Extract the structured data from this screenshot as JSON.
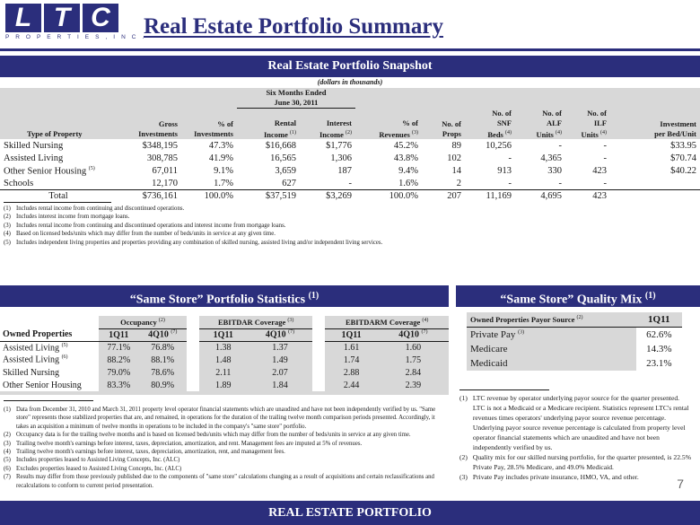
{
  "logo": {
    "letters": [
      "L",
      "T",
      "C"
    ],
    "subtitle": "P R O P E R T I E S ,   I N C ."
  },
  "page_title": "Real Estate Portfolio Summary",
  "snapshot": {
    "heading": "Real Estate Portfolio Snapshot",
    "units_note": "(dollars in thousands)",
    "period_header": [
      "Six Months Ended",
      "June 30, 2011"
    ],
    "columns": {
      "type": "Type of Property",
      "gross": [
        "Gross",
        "Investments"
      ],
      "pct_inv": [
        "% of",
        "Investments"
      ],
      "rental": [
        "Rental",
        "Income"
      ],
      "rental_sup": "(1)",
      "interest": [
        "Interest",
        "Income"
      ],
      "interest_sup": "(2)",
      "pct_rev": [
        "% of",
        "Revenues"
      ],
      "pct_rev_sup": "(3)",
      "props": [
        "No. of",
        "Props"
      ],
      "snf": [
        "No. of",
        "SNF",
        "Beds"
      ],
      "snf_sup": "(4)",
      "alf": [
        "No. of",
        "ALF",
        "Units"
      ],
      "alf_sup": "(4)",
      "ilf": [
        "No. of",
        "ILF",
        "Units"
      ],
      "ilf_sup": "(4)",
      "inv_per_bed": [
        "Investment",
        "per Bed/Unit"
      ]
    },
    "rows": [
      {
        "type": "Skilled Nursing",
        "sup": "",
        "gross": "$348,195",
        "pct_inv": "47.3%",
        "rental": "$16,668",
        "interest": "$1,776",
        "pct_rev": "45.2%",
        "props": "89",
        "snf": "10,256",
        "alf": "-",
        "ilf": "-",
        "per_bed": "$33.95"
      },
      {
        "type": "Assisted Living",
        "sup": "",
        "gross": "308,785",
        "pct_inv": "41.9%",
        "rental": "16,565",
        "interest": "1,306",
        "pct_rev": "43.8%",
        "props": "102",
        "snf": "-",
        "alf": "4,365",
        "ilf": "-",
        "per_bed": "$70.74"
      },
      {
        "type": "Other Senior Housing",
        "sup": "(5)",
        "gross": "67,011",
        "pct_inv": "9.1%",
        "rental": "3,659",
        "interest": "187",
        "pct_rev": "9.4%",
        "props": "14",
        "snf": "913",
        "alf": "330",
        "ilf": "423",
        "per_bed": "$40.22"
      },
      {
        "type": "Schools",
        "sup": "",
        "gross": "12,170",
        "pct_inv": "1.7%",
        "rental": "627",
        "interest": "-",
        "pct_rev": "1.6%",
        "props": "2",
        "snf": "-",
        "alf": "-",
        "ilf": "-",
        "per_bed": ""
      }
    ],
    "total": {
      "label": "Total",
      "gross": "$736,161",
      "pct_inv": "100.0%",
      "rental": "$37,519",
      "interest": "$3,269",
      "pct_rev": "100.0%",
      "props": "207",
      "snf": "11,169",
      "alf": "4,695",
      "ilf": "423",
      "per_bed": ""
    },
    "footnotes": [
      {
        "num": "(1)",
        "text": "Includes rental income from continuing and discontinued operations."
      },
      {
        "num": "(2)",
        "text": "Includes interest income from mortgage loans."
      },
      {
        "num": "(3)",
        "text": "Includes rental income from continuing and discontinued operations and interest income from mortgage loans."
      },
      {
        "num": "(4)",
        "text": "Based on licensed beds/units which may differ from the number of beds/units in service at any given time."
      },
      {
        "num": "(5)",
        "text": "Includes independent living properties and properties providing any combination of skilled nursing, assisted living and/or independent living services."
      }
    ]
  },
  "same_store": {
    "heading": "“Same Store” Portfolio Statistics",
    "heading_sup": "(1)",
    "groups": [
      {
        "label": "Occupancy",
        "sup": "(2)"
      },
      {
        "label": "EBITDAR Coverage",
        "sup": "(3)"
      },
      {
        "label": "EBITDARM Coverage",
        "sup": "(4)"
      }
    ],
    "owned_label": "Owned Properties",
    "period_cols": [
      "1Q11",
      "4Q10",
      "1Q11",
      "4Q10",
      "1Q11",
      "4Q10"
    ],
    "period_sups": [
      "",
      "(7)",
      "",
      "(7)",
      "",
      "(7)"
    ],
    "rows": [
      {
        "label": "Assisted Living",
        "sup": "(5)",
        "values": [
          "77.1%",
          "76.8%",
          "1.38",
          "1.37",
          "1.61",
          "1.60"
        ]
      },
      {
        "label": "Assisted Living",
        "sup": "(6)",
        "values": [
          "88.2%",
          "88.1%",
          "1.48",
          "1.49",
          "1.74",
          "1.75"
        ]
      },
      {
        "label": "Skilled Nursing",
        "sup": "",
        "values": [
          "79.0%",
          "78.6%",
          "2.11",
          "2.07",
          "2.88",
          "2.84"
        ]
      },
      {
        "label": "Other Senior Housing",
        "sup": "",
        "values": [
          "83.3%",
          "80.9%",
          "1.89",
          "1.84",
          "2.44",
          "2.39"
        ]
      }
    ],
    "footnotes": [
      {
        "num": "(1)",
        "text": "Data from December 31, 2010 and March 31, 2011 property level operator financial statements which are unaudited and have not been independently verified by us. \"Same store\" represents those stabilized properties that are, and remained, in operations for the duration of the trailing twelve month comparison periods presented. Accordingly, it takes an acquisition a minimum of twelve months in operations to be included in the company's \"same store\" portfolio."
      },
      {
        "num": "(2)",
        "text": "Occupancy data is for the trailing twelve months and is based on licensed beds/units which may differ from the number of beds/units in service at any given time."
      },
      {
        "num": "(3)",
        "text": "Trailing twelve month's earnings before interest, taxes, depreciation, amortization, and rent.  Management fees are imputed at 5% of revenues."
      },
      {
        "num": "(4)",
        "text": "Trailing twelve month's earnings before interest, taxes, depreciation, amortization, rent, and management fees."
      },
      {
        "num": "(5)",
        "text": "Includes properties leased to Assisted Living Concepts, Inc. (ALC)"
      },
      {
        "num": "(6)",
        "text": "Excludes properties leased to Assisted Living Concepts, Inc. (ALC)"
      },
      {
        "num": "(7)",
        "text": "Results may differ from those previously published due to the components of \"same store\" calculations changing as a result of acquisitions and certain reclassifications and recalculations to conform to current period presentation."
      }
    ]
  },
  "quality_mix": {
    "heading": "“Same Store” Quality Mix",
    "heading_sup": "(1)",
    "col_label": "Owned Properties Payor Source",
    "col_label_sup": "(2)",
    "period": "1Q11",
    "rows": [
      {
        "label": "Private Pay",
        "sup": "(3)",
        "value": "62.6%"
      },
      {
        "label": "Medicare",
        "sup": "",
        "value": "14.3%"
      },
      {
        "label": "Medicaid",
        "sup": "",
        "value": "23.1%"
      }
    ],
    "footnotes": [
      {
        "num": "(1)",
        "text": "LTC revenue by operator underlying payor source for the quarter presented.  LTC is not a Medicaid or a Medicare recipient.  Statistics represent LTC's rental revenues times operators' underlying payor source revenue percentage.  Underlying payor source revenue percentage is calculated from property level operator financial statements which are unaudited and have not been independently verified by us."
      },
      {
        "num": "(2)",
        "text": "Quality mix for our skilled nursing portfolio, for the quarter presented, is 22.5% Private Pay, 28.5% Medicare, and 49.0% Medicaid."
      },
      {
        "num": "(3)",
        "text": "Private Pay includes private insurance, HMO, VA, and other."
      }
    ]
  },
  "footer": {
    "label": "REAL ESTATE PORTFOLIO",
    "page_number": "7"
  }
}
